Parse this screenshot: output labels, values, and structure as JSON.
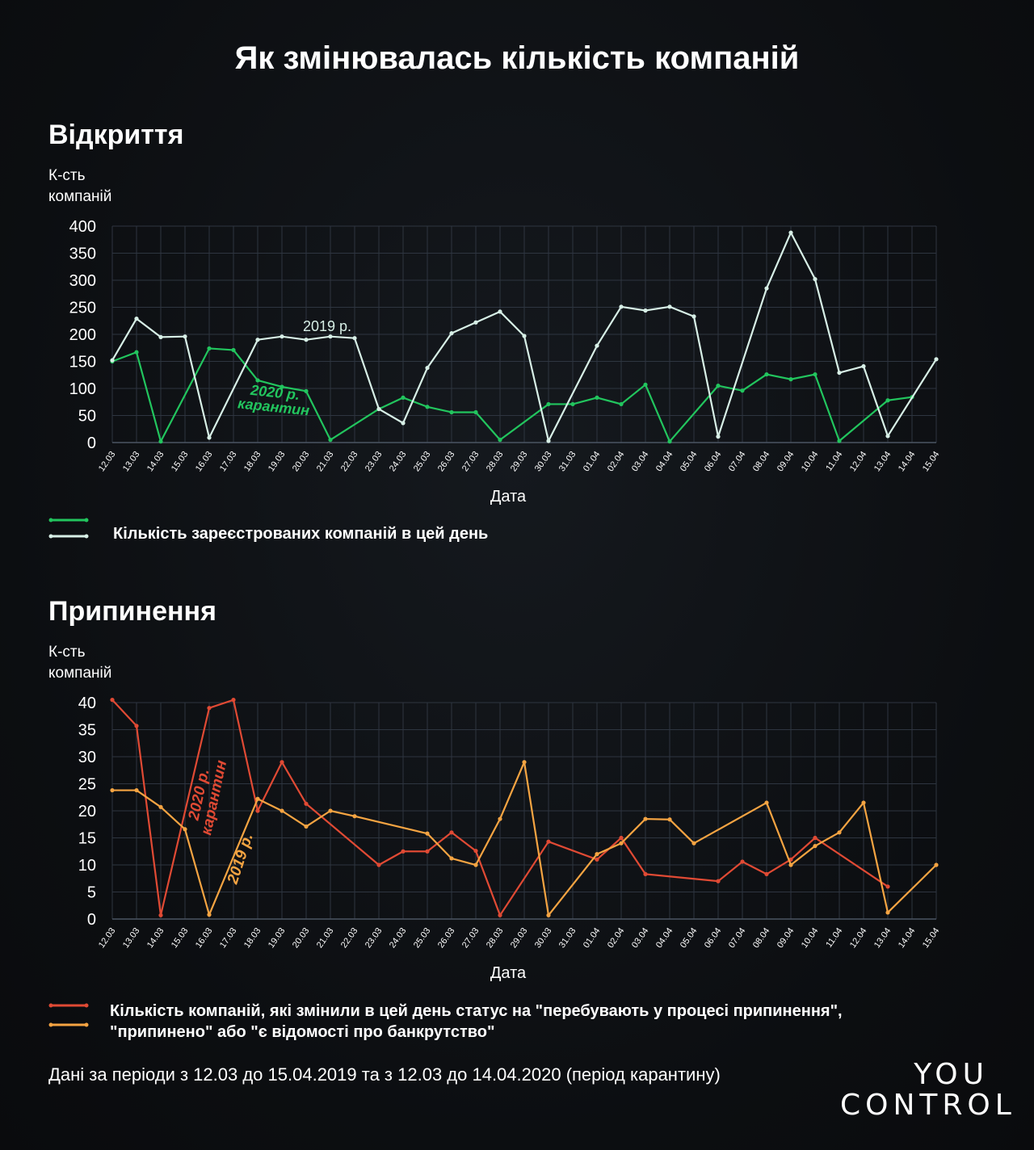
{
  "title": "Як змінювалась кількість компаній",
  "footnote": "Дані за періоди з 12.03 до 15.04.2019 та з 12.03 до 14.04.2020 (період карантину)",
  "logo": {
    "line1": "YOU",
    "line2": "CONTROL"
  },
  "colors": {
    "background": "#0c0e11",
    "opened_2020": "#22c55e",
    "opened_2019": "#d7efe6",
    "closed_2020": "#e04a34",
    "closed_2019": "#f5a442",
    "grid": "#2e3540"
  },
  "chart_data": [
    {
      "id": "opened",
      "type": "line",
      "title": "Відкриття",
      "ylabel_lines": [
        "К-сть",
        "компаній"
      ],
      "xlabel": "Дата",
      "ylim": [
        0,
        400
      ],
      "yticks": [
        0,
        50,
        100,
        150,
        200,
        250,
        300,
        350,
        400
      ],
      "grid": true,
      "x": [
        "12.03",
        "13.03",
        "14.03",
        "15.03",
        "16.03",
        "17.03",
        "18.03",
        "19.03",
        "20.03",
        "21.03",
        "22.03",
        "23.03",
        "24.03",
        "25.03",
        "26.03",
        "27.03",
        "28.03",
        "29.03",
        "30.03",
        "31.03",
        "01.04",
        "02.04",
        "03.04",
        "04.04",
        "05.04",
        "06.04",
        "07.04",
        "08.04",
        "09.04",
        "10.04",
        "11.04",
        "12.04",
        "13.04",
        "14.04",
        "15.04"
      ],
      "legend_text_lines": [
        "Кількість зареєстрованих компаній в цей день"
      ],
      "series": [
        {
          "key": "s2020",
          "label_lines": [
            "2020 р.",
            "карантин"
          ],
          "color": "#22c55e",
          "values": [
            150,
            167,
            2,
            null,
            174,
            171,
            115,
            103,
            95,
            5,
            null,
            62,
            83,
            66,
            56,
            56,
            5,
            null,
            71,
            71,
            83,
            71,
            107,
            2,
            null,
            105,
            96,
            126,
            117,
            126,
            3,
            null,
            78,
            84,
            null
          ]
        },
        {
          "key": "s2019",
          "label_lines": [
            "2019 р."
          ],
          "color": "#d7efe6",
          "values": [
            152,
            229,
            195,
            196,
            9,
            null,
            190,
            196,
            190,
            196,
            193,
            62,
            36,
            138,
            202,
            222,
            242,
            197,
            3,
            null,
            179,
            251,
            244,
            251,
            233,
            11,
            null,
            285,
            388,
            302,
            129,
            141,
            12,
            null,
            154
          ]
        }
      ]
    },
    {
      "id": "closed",
      "type": "line",
      "title": "Припинення",
      "ylabel_lines": [
        "К-сть",
        "компаній"
      ],
      "xlabel": "Дата",
      "ylim": [
        0,
        40
      ],
      "yticks": [
        0,
        5,
        10,
        15,
        20,
        25,
        30,
        35,
        40
      ],
      "grid": true,
      "x": [
        "12.03",
        "13.03",
        "14.03",
        "15.03",
        "16.03",
        "17.03",
        "18.03",
        "19.03",
        "20.03",
        "21.03",
        "22.03",
        "23.03",
        "24.03",
        "25.03",
        "26.03",
        "27.03",
        "28.03",
        "29.03",
        "30.03",
        "31.03",
        "01.04",
        "02.04",
        "03.04",
        "04.04",
        "05.04",
        "06.04",
        "07.04",
        "08.04",
        "09.04",
        "10.04",
        "11.04",
        "12.04",
        "13.04",
        "14.04",
        "15.04"
      ],
      "legend_text_lines": [
        "Кількість компаній, які змінили в цей день статус на \"перебувають у процесі припинення\",",
        "\"припинено\" або \"є відомості про банкрутство\""
      ],
      "series": [
        {
          "key": "s2020",
          "label_lines": [
            "2020 р.",
            "карантин"
          ],
          "color": "#e04a34",
          "values": [
            40.5,
            35.7,
            0.7,
            null,
            39,
            40.5,
            20,
            29,
            21.3,
            null,
            null,
            10,
            12.5,
            12.5,
            16,
            12.6,
            0.7,
            null,
            14.3,
            null,
            11,
            15,
            8.3,
            null,
            null,
            7,
            10.6,
            8.3,
            11,
            15,
            null,
            null,
            6,
            null,
            null
          ]
        },
        {
          "key": "s2019",
          "label_lines": [
            "2019 р."
          ],
          "color": "#f5a442",
          "values": [
            23.8,
            23.8,
            20.7,
            16.6,
            0.8,
            null,
            22.2,
            20,
            17.1,
            20,
            19,
            null,
            null,
            15.8,
            11.2,
            10,
            18.5,
            29,
            0.7,
            null,
            12,
            14,
            18.5,
            18.4,
            14,
            null,
            null,
            21.5,
            10,
            13.5,
            16,
            21.5,
            1.2,
            null,
            10
          ]
        }
      ]
    }
  ]
}
